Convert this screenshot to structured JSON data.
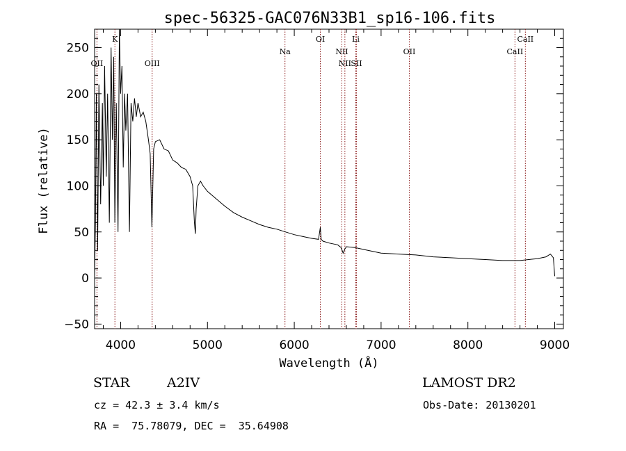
{
  "chart_data": {
    "type": "line",
    "title": "spec-56325-GAC076N33B1_sp16-106.fits",
    "xlabel": "Wavelength (Å)",
    "ylabel": "Flux (relative)",
    "xlim": [
      3700,
      9100
    ],
    "ylim": [
      -55,
      270
    ],
    "x_ticks": [
      4000,
      5000,
      6000,
      7000,
      8000,
      9000
    ],
    "y_ticks": [
      -50,
      0,
      50,
      100,
      150,
      200,
      250
    ],
    "grid": false,
    "series": [
      {
        "x": [
          3700,
          3710,
          3720,
          3735,
          3750,
          3770,
          3790,
          3800,
          3815,
          3835,
          3850,
          3870,
          3890,
          3905,
          3920,
          3933,
          3950,
          3970,
          3985,
          4000,
          4015,
          4030,
          4045,
          4060,
          4080,
          4101,
          4120,
          4140,
          4160,
          4180,
          4200,
          4230,
          4260,
          4290,
          4320,
          4340,
          4360,
          4380,
          4400,
          4450,
          4500,
          4550,
          4600,
          4650,
          4700,
          4750,
          4800,
          4830,
          4850,
          4861,
          4870,
          4890,
          4920,
          4950,
          5000,
          5100,
          5200,
          5300,
          5400,
          5500,
          5600,
          5700,
          5800,
          5900,
          6000,
          6100,
          6200,
          6280,
          6300,
          6310,
          6330,
          6400,
          6500,
          6540,
          6563,
          6580,
          6600,
          6700,
          6800,
          6900,
          7000,
          7200,
          7400,
          7600,
          7800,
          8000,
          8200,
          8400,
          8600,
          8700,
          8800,
          8900,
          8950,
          8985,
          9000
        ],
        "y": [
          0,
          60,
          200,
          30,
          210,
          80,
          190,
          100,
          230,
          110,
          200,
          60,
          250,
          150,
          240,
          60,
          190,
          50,
          270,
          200,
          230,
          120,
          200,
          160,
          200,
          50,
          190,
          170,
          195,
          175,
          190,
          175,
          180,
          170,
          150,
          135,
          55,
          140,
          148,
          150,
          140,
          138,
          128,
          125,
          120,
          118,
          110,
          100,
          60,
          48,
          75,
          100,
          105,
          100,
          94,
          86,
          78,
          71,
          66,
          62,
          58,
          55,
          53,
          50,
          47,
          45,
          43,
          42,
          55,
          42,
          40,
          38,
          36,
          33,
          27,
          31,
          34,
          33,
          31,
          29,
          27,
          26,
          25,
          23,
          22,
          21,
          20,
          19,
          19,
          20,
          21,
          23,
          26,
          22,
          2
        ]
      }
    ],
    "emission_lines": [
      {
        "label": "OII",
        "x": 3727,
        "row": 2
      },
      {
        "label": "K",
        "x": 3934,
        "row": 0
      },
      {
        "label": "OIII",
        "x": 4363,
        "row": 2
      },
      {
        "label": "Na",
        "x": 5893,
        "row": 1
      },
      {
        "label": "OI",
        "x": 6300,
        "row": 0
      },
      {
        "label": "NII",
        "x": 6548,
        "row": 1
      },
      {
        "label": "NII",
        "x": 6583,
        "row": 2
      },
      {
        "label": "Li",
        "x": 6708,
        "row": 0
      },
      {
        "label": "SII",
        "x": 6716,
        "row": 2
      },
      {
        "label": "OII",
        "x": 7325,
        "row": 1
      },
      {
        "label": "CaII",
        "x": 8542,
        "row": 1
      },
      {
        "label": "CaII",
        "x": 8662,
        "row": 0
      }
    ],
    "line_color": "#8b1a1a",
    "spectrum_color": "#000000"
  },
  "info": {
    "object_type": "STAR",
    "subclass": "A2IV",
    "survey": "LAMOST DR2",
    "cz": "cz = 42.3 ± 3.4 km/s",
    "obs_date": "Obs-Date: 20130201",
    "coords": "RA =  75.78079, DEC =  35.64908"
  }
}
